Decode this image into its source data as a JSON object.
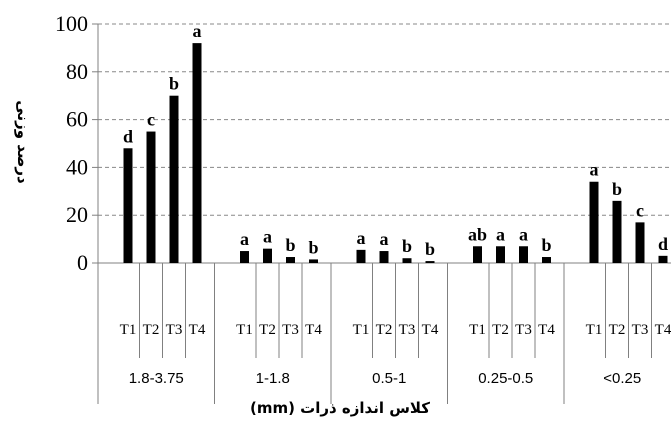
{
  "chart_data": {
    "type": "bar",
    "xlabel": "کلاس اندازه ذرات (mm)",
    "ylabel": "درصد وزنی",
    "ylim": [
      0,
      100
    ],
    "yticks": [
      "0",
      "20",
      "40",
      "60",
      "80",
      "100"
    ],
    "grid": "horizontal dashed",
    "groups": [
      {
        "label": "1.8-3.75",
        "bars": [
          {
            "treatment": "T1",
            "value": 48,
            "letter": "d"
          },
          {
            "treatment": "T2",
            "value": 55,
            "letter": "c"
          },
          {
            "treatment": "T3",
            "value": 70,
            "letter": "b"
          },
          {
            "treatment": "T4",
            "value": 92,
            "letter": "a"
          }
        ]
      },
      {
        "label": "1-1.8",
        "bars": [
          {
            "treatment": "T1",
            "value": 5,
            "letter": "a"
          },
          {
            "treatment": "T2",
            "value": 6,
            "letter": "a"
          },
          {
            "treatment": "T3",
            "value": 2.5,
            "letter": "b"
          },
          {
            "treatment": "T4",
            "value": 1.5,
            "letter": "b"
          }
        ]
      },
      {
        "label": "0.5-1",
        "bars": [
          {
            "treatment": "T1",
            "value": 5.5,
            "letter": "a"
          },
          {
            "treatment": "T2",
            "value": 5,
            "letter": "a"
          },
          {
            "treatment": "T3",
            "value": 2,
            "letter": "b"
          },
          {
            "treatment": "T4",
            "value": 0.8,
            "letter": "b"
          }
        ]
      },
      {
        "label": "0.25-0.5",
        "bars": [
          {
            "treatment": "T1",
            "value": 7,
            "letter": "ab"
          },
          {
            "treatment": "T2",
            "value": 7,
            "letter": "a"
          },
          {
            "treatment": "T3",
            "value": 7,
            "letter": "a"
          },
          {
            "treatment": "T4",
            "value": 2.5,
            "letter": "b"
          }
        ]
      },
      {
        "label": "<0.25",
        "bars": [
          {
            "treatment": "T1",
            "value": 34,
            "letter": "a"
          },
          {
            "treatment": "T2",
            "value": 26,
            "letter": "b"
          },
          {
            "treatment": "T3",
            "value": 17,
            "letter": "c"
          },
          {
            "treatment": "T4",
            "value": 3,
            "letter": "d"
          }
        ]
      }
    ],
    "colors": {
      "bar": "#000000",
      "grid": "#888888",
      "axis": "#808080"
    }
  }
}
